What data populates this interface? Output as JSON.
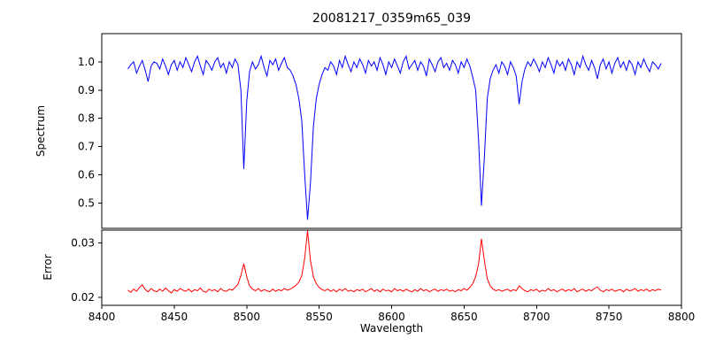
{
  "title": "20081217_0359m65_039",
  "xlabel": "Wavelength",
  "x_axis": {
    "lim": [
      8400,
      8800
    ],
    "ticks": [
      {
        "v": 8400,
        "t": "8400"
      },
      {
        "v": 8450,
        "t": "8450"
      },
      {
        "v": 8500,
        "t": "8500"
      },
      {
        "v": 8550,
        "t": "8550"
      },
      {
        "v": 8600,
        "t": "8600"
      },
      {
        "v": 8650,
        "t": "8650"
      },
      {
        "v": 8700,
        "t": "8700"
      },
      {
        "v": 8750,
        "t": "8750"
      },
      {
        "v": 8800,
        "t": "8800"
      }
    ]
  },
  "chart_data": [
    {
      "type": "line",
      "name": "spectrum",
      "ylabel": "Spectrum",
      "color": "#0000ff",
      "ylim": [
        0.41,
        1.1
      ],
      "yticks": [
        {
          "v": 1.0,
          "t": "1.0"
        },
        {
          "v": 0.9,
          "t": "0.9"
        },
        {
          "v": 0.8,
          "t": "0.8"
        },
        {
          "v": 0.7,
          "t": "0.7"
        },
        {
          "v": 0.6,
          "t": "0.6"
        },
        {
          "v": 0.5,
          "t": "0.5"
        }
      ],
      "absorption_line_centers": [
        8498,
        8542,
        8662
      ],
      "x_start": 8418,
      "x_step": 2,
      "values": [
        0.975,
        0.99,
        1.0,
        0.96,
        0.985,
        1.005,
        0.97,
        0.93,
        0.985,
        1.0,
        0.995,
        0.975,
        1.01,
        0.985,
        0.955,
        0.99,
        1.005,
        0.97,
        1.0,
        0.98,
        1.015,
        0.99,
        0.965,
        1.0,
        1.02,
        0.985,
        0.955,
        1.005,
        0.99,
        0.97,
        1.0,
        1.015,
        0.98,
        0.995,
        0.96,
        1.0,
        0.98,
        1.01,
        0.99,
        0.9,
        0.62,
        0.86,
        0.965,
        1.0,
        0.975,
        0.99,
        1.02,
        0.98,
        0.95,
        1.005,
        0.99,
        1.01,
        0.97,
        0.995,
        1.015,
        0.98,
        0.97,
        0.95,
        0.92,
        0.87,
        0.79,
        0.6,
        0.44,
        0.57,
        0.77,
        0.87,
        0.92,
        0.955,
        0.98,
        0.97,
        1.0,
        0.985,
        0.955,
        1.005,
        0.98,
        1.02,
        0.99,
        0.965,
        1.0,
        0.98,
        1.01,
        0.99,
        0.96,
        1.005,
        0.985,
        1.0,
        0.97,
        1.015,
        0.99,
        0.955,
        1.0,
        0.98,
        1.01,
        0.985,
        0.96,
        1.0,
        1.02,
        0.975,
        0.99,
        1.005,
        0.97,
        1.0,
        0.985,
        0.95,
        1.01,
        0.99,
        0.965,
        1.0,
        1.015,
        0.98,
        0.995,
        0.97,
        1.005,
        0.99,
        0.96,
        1.0,
        0.98,
        1.01,
        0.985,
        0.945,
        0.9,
        0.72,
        0.49,
        0.66,
        0.87,
        0.94,
        0.97,
        0.99,
        0.96,
        1.0,
        0.985,
        0.955,
        1.0,
        0.98,
        0.95,
        0.85,
        0.93,
        0.975,
        1.0,
        0.985,
        1.01,
        0.99,
        0.965,
        1.0,
        0.98,
        1.015,
        0.99,
        0.96,
        1.005,
        0.985,
        1.0,
        0.97,
        1.01,
        0.99,
        0.955,
        1.0,
        0.98,
        1.02,
        0.99,
        0.97,
        1.005,
        0.98,
        0.94,
        0.99,
        1.01,
        0.975,
        1.0,
        0.96,
        0.995,
        1.015,
        0.98,
        1.0,
        0.97,
        1.005,
        0.99,
        0.955,
        1.0,
        0.98,
        1.01,
        0.985,
        0.965,
        1.0,
        0.99,
        0.975,
        0.995
      ]
    },
    {
      "type": "line",
      "name": "error",
      "ylabel": "Error",
      "color": "#ff0000",
      "ylim": [
        0.0185,
        0.0324
      ],
      "yticks": [
        {
          "v": 0.03,
          "t": "0.03"
        },
        {
          "v": 0.02,
          "t": "0.02"
        }
      ],
      "peak_centers": [
        8498,
        8542,
        8662
      ],
      "x_start": 8418,
      "x_step": 2,
      "values": [
        0.0213,
        0.0209,
        0.0215,
        0.0211,
        0.0218,
        0.0223,
        0.0214,
        0.021,
        0.0216,
        0.0212,
        0.021,
        0.0215,
        0.0211,
        0.0217,
        0.0212,
        0.0208,
        0.0214,
        0.0211,
        0.0216,
        0.0213,
        0.0211,
        0.0215,
        0.021,
        0.0214,
        0.0212,
        0.0217,
        0.0211,
        0.0209,
        0.0215,
        0.0212,
        0.0214,
        0.021,
        0.0216,
        0.0212,
        0.0211,
        0.0215,
        0.0213,
        0.0218,
        0.0224,
        0.024,
        0.0262,
        0.0238,
        0.0221,
        0.0215,
        0.0212,
        0.0216,
        0.0211,
        0.0214,
        0.0212,
        0.021,
        0.0215,
        0.0211,
        0.0214,
        0.0212,
        0.0216,
        0.0213,
        0.0215,
        0.0218,
        0.0222,
        0.0228,
        0.024,
        0.0272,
        0.0323,
        0.0268,
        0.0238,
        0.0225,
        0.0218,
        0.0214,
        0.0212,
        0.0215,
        0.0211,
        0.0214,
        0.021,
        0.0215,
        0.0212,
        0.0216,
        0.0211,
        0.0213,
        0.021,
        0.0214,
        0.0212,
        0.0215,
        0.021,
        0.0213,
        0.0216,
        0.0211,
        0.0214,
        0.021,
        0.0215,
        0.0212,
        0.0213,
        0.021,
        0.0216,
        0.0212,
        0.0214,
        0.0211,
        0.0215,
        0.0212,
        0.021,
        0.0214,
        0.0211,
        0.0216,
        0.0212,
        0.0214,
        0.021,
        0.0213,
        0.0215,
        0.0211,
        0.0214,
        0.0212,
        0.0215,
        0.0211,
        0.0213,
        0.021,
        0.0214,
        0.0212,
        0.0216,
        0.0213,
        0.0218,
        0.0225,
        0.0238,
        0.0262,
        0.0308,
        0.0268,
        0.0234,
        0.0221,
        0.0215,
        0.0212,
        0.0214,
        0.0211,
        0.0213,
        0.0215,
        0.0211,
        0.0214,
        0.0212,
        0.0221,
        0.0216,
        0.0212,
        0.021,
        0.0214,
        0.0212,
        0.0215,
        0.021,
        0.0213,
        0.0211,
        0.0216,
        0.0212,
        0.0214,
        0.021,
        0.0213,
        0.0215,
        0.0211,
        0.0214,
        0.0212,
        0.0216,
        0.021,
        0.0213,
        0.0215,
        0.0211,
        0.0214,
        0.0212,
        0.0216,
        0.0219,
        0.0213,
        0.021,
        0.0214,
        0.0212,
        0.0215,
        0.0211,
        0.0213,
        0.0214,
        0.021,
        0.0215,
        0.0212,
        0.0213,
        0.0216,
        0.0211,
        0.0214,
        0.0212,
        0.0215,
        0.0211,
        0.0214,
        0.0212,
        0.0215,
        0.0213
      ]
    }
  ]
}
